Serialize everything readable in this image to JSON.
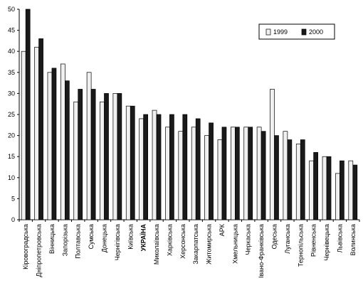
{
  "chart_data": {
    "type": "bar",
    "title": "",
    "xlabel": "",
    "ylabel": "",
    "ylim": [
      0,
      50
    ],
    "yticks": [
      0,
      5,
      10,
      15,
      20,
      25,
      30,
      35,
      40,
      45,
      50
    ],
    "grid": false,
    "legend_position": "top-right",
    "highlight_category": "УКРАЇНА",
    "categories": [
      "Кіровоградська",
      "Дніпропетровська",
      "Вінницька",
      "Запорізька",
      "Полтавська",
      "Сумська",
      "Донецька",
      "Чернігівська",
      "Київська",
      "УКРАЇНА",
      "Миколаївська",
      "Харківська",
      "Херсонська",
      "Закарпатська",
      "Житомирська",
      "АРК",
      "Хмельницька",
      "Черкаська",
      "Івано-Франківська",
      "Одеська",
      "Луганська",
      "Тернопільська",
      "Рівненська",
      "Чернівецька",
      "Львівська",
      "Волинська"
    ],
    "series": [
      {
        "name": "1999",
        "color": "#f0f0f0",
        "values": [
          40,
          41,
          35,
          37,
          28,
          35,
          28,
          30,
          27,
          24,
          26,
          22,
          21,
          22,
          20,
          19,
          22,
          22,
          22,
          31,
          21,
          18,
          14,
          15,
          11,
          14
        ]
      },
      {
        "name": "2000",
        "color": "#1a1a1a",
        "values": [
          50,
          43,
          36,
          33,
          31,
          31,
          30,
          30,
          27,
          25,
          25,
          25,
          25,
          24,
          23,
          22,
          22,
          22,
          21,
          20,
          19,
          19,
          16,
          15,
          14,
          13
        ]
      }
    ]
  }
}
